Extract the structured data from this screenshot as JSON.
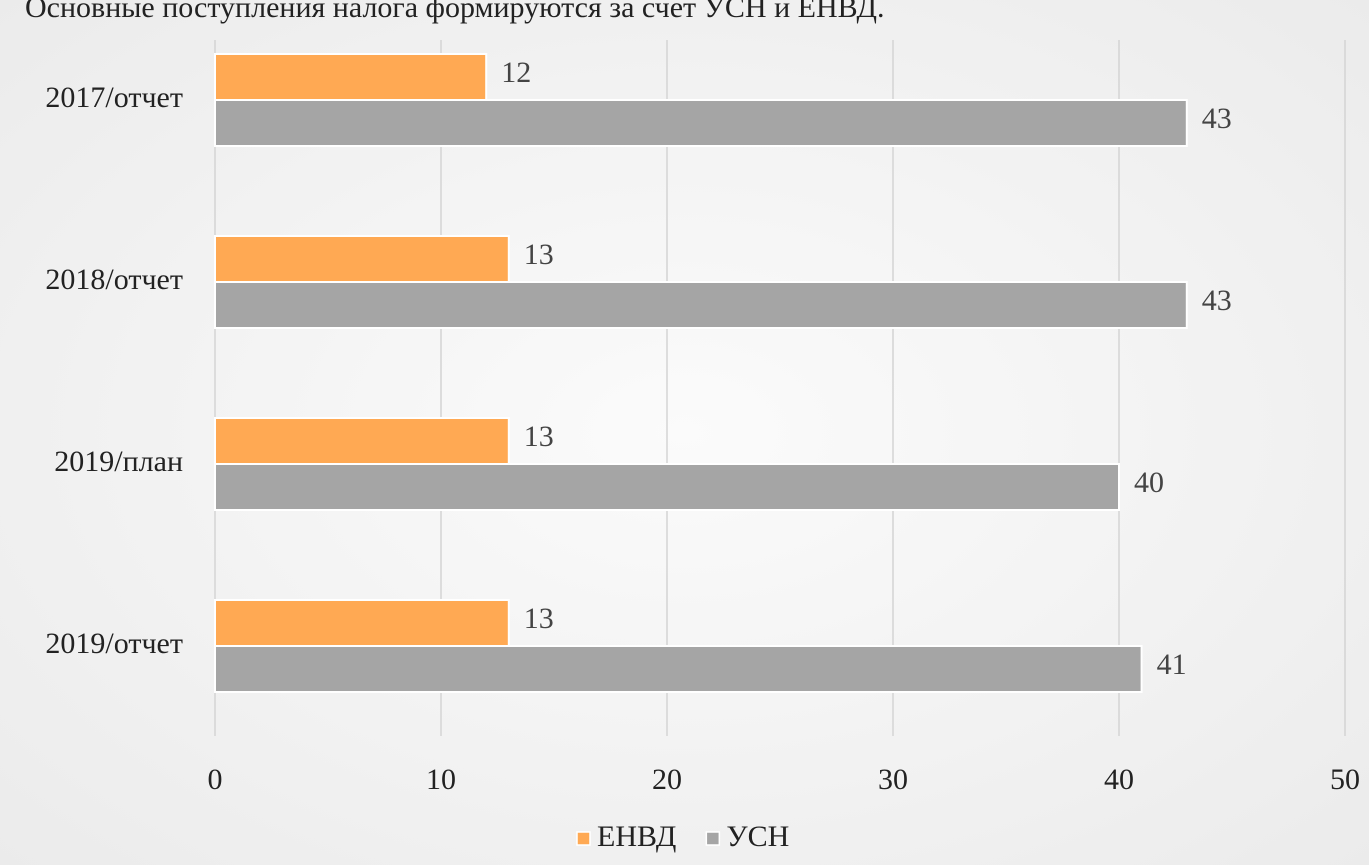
{
  "chart_data": {
    "type": "hbar",
    "title": "Основные поступления налога формируются за счет УСН и ЕНВД.",
    "categories": [
      "2017/отчет",
      "2018/отчет",
      "2019/план",
      "2019/отчет"
    ],
    "series": [
      {
        "name": "ЕНВД",
        "color": "#ffa953",
        "values": [
          12,
          13,
          13,
          13
        ]
      },
      {
        "name": "УСН",
        "color": "#a5a5a5",
        "values": [
          43,
          43,
          40,
          41
        ]
      }
    ],
    "xlim": [
      0,
      50
    ],
    "xticks": [
      0,
      10,
      20,
      30,
      40,
      50
    ],
    "grid": true,
    "legend": "bottom"
  }
}
